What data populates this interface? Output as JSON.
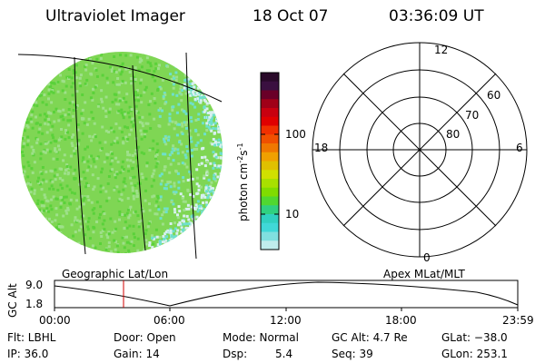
{
  "header": {
    "instrument": "Ultraviolet Imager",
    "date": "18 Oct 07",
    "time": "03:36:09 UT"
  },
  "colorbar": {
    "unit": "photon cm",
    "unit_exp1": "-2",
    "unit_s": "s",
    "unit_exp2": "-1",
    "tick_labels": [
      "100",
      "10"
    ],
    "colors": [
      "#2a0a2a",
      "#3a1040",
      "#6a0028",
      "#a00018",
      "#c80010",
      "#e00000",
      "#f03000",
      "#f05000",
      "#f07800",
      "#f0a000",
      "#e0c000",
      "#d0e000",
      "#a8e000",
      "#80dc00",
      "#50d830",
      "#30d080",
      "#30d0c0",
      "#40d8d8",
      "#80e0e0",
      "#c0ecec"
    ]
  },
  "image_panel": {
    "caption": "Geographic Lat/Lon",
    "colors": {
      "base": "#7fd654",
      "bright": "#5ad13a",
      "dim": "#9ee08a",
      "cyan": "#6ee0cc",
      "pale": "#d8f0f0"
    }
  },
  "polar_plot": {
    "caption": "Apex MLat/MLT",
    "mlt_labels": {
      "top": "12",
      "left": "18",
      "right": "6",
      "bottom": "0"
    },
    "mlat_labels": [
      "60",
      "70",
      "80"
    ]
  },
  "orbit_plot": {
    "ylabel": "GC Alt",
    "ytick_top": "9.0",
    "ytick_bottom": "1.8",
    "x_ticks": [
      "00:00",
      "06:00",
      "12:00",
      "18:00",
      "23:59"
    ],
    "current_marker_color": "#d00000"
  },
  "status": {
    "flt": "Flt: LBHL",
    "door": "Door: Open",
    "mode": "Mode: Normal",
    "gc_alt": "GC Alt: 4.7 Re",
    "glat": "GLat: −38.0",
    "ip": "IP: 36.0",
    "gain": "Gain: 14",
    "dsp_label": "Dsp:",
    "dsp_value": "5.4",
    "seq": "Seq: 39",
    "glon": "GLon: 253.1"
  }
}
